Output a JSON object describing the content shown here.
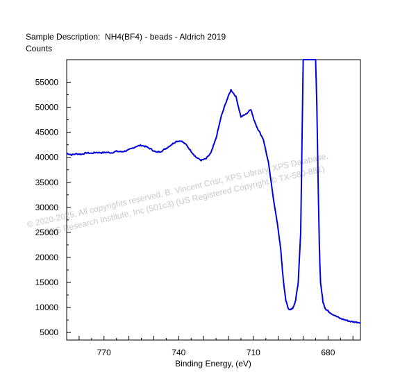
{
  "chart_data": {
    "type": "line",
    "title": "Sample Description:  NH4(BF4) - beads - Aldrich 2019",
    "ylabel": "Counts",
    "xlabel": "Binding Energy, (eV)",
    "x_reversed": true,
    "xlim": [
      785,
      667
    ],
    "ylim": [
      3500,
      59500
    ],
    "xticks": [
      770,
      740,
      710,
      680
    ],
    "yticks": [
      5000,
      10000,
      15000,
      20000,
      25000,
      30000,
      35000,
      40000,
      45000,
      50000,
      55000
    ],
    "line_color": "#0000dd",
    "grid": false,
    "series": [
      {
        "x": [
          785,
          783,
          781,
          779,
          777,
          775,
          773,
          771,
          769,
          767,
          765,
          763,
          761,
          759,
          757,
          755,
          753,
          751,
          749,
          747,
          745,
          743,
          741,
          739,
          737,
          735,
          733,
          731,
          729,
          727,
          725,
          723,
          721,
          719,
          717,
          715,
          713,
          711,
          710,
          709,
          708,
          706,
          704,
          702,
          700,
          699,
          698,
          697,
          696,
          695,
          694,
          693,
          692,
          691,
          690,
          689,
          688,
          687.5,
          687,
          686.5,
          686,
          685.5,
          685,
          684.5,
          684,
          683.5,
          683,
          682,
          681,
          680,
          679,
          677,
          675,
          673,
          671,
          669,
          667
        ],
        "y": [
          40800,
          40500,
          40700,
          40600,
          40900,
          40800,
          41000,
          40900,
          41000,
          40900,
          41200,
          41100,
          41300,
          41700,
          42200,
          42400,
          42100,
          41600,
          41000,
          41200,
          41800,
          42500,
          43200,
          43300,
          42500,
          41200,
          40000,
          39400,
          39700,
          40900,
          43800,
          48000,
          51000,
          53500,
          52100,
          48100,
          48600,
          49600,
          47900,
          46500,
          45500,
          43600,
          39000,
          32000,
          25500,
          21500,
          15500,
          11500,
          9800,
          9500,
          10000,
          11500,
          15000,
          25000,
          59500,
          59500,
          59500,
          59500,
          59500,
          59500,
          59500,
          59500,
          59500,
          50000,
          35000,
          22000,
          15000,
          11000,
          9700,
          9300,
          8900,
          8300,
          7800,
          7500,
          7200,
          7100,
          7000
        ]
      }
    ]
  },
  "watermark": {
    "line1": "©  2020-2025,  All copyrights reserved,   B. Vincent Crist,  XPS Library, XPS Database,",
    "line2": "XPS Research Institute, Inc (501c3)   (US Registered Copyright © TX-580-881)"
  }
}
